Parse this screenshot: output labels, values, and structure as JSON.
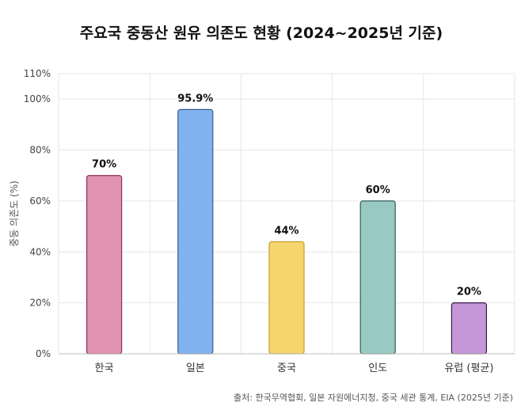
{
  "chart_data": {
    "type": "bar",
    "title": "주요국 중동산 원유 의존도 현황 (2024~2025년 기준)",
    "ylabel": "중동 의존도 (%)",
    "xlabel": "",
    "categories": [
      "한국",
      "일본",
      "중국",
      "인도",
      "유럽 (평균)"
    ],
    "values": [
      70,
      95.9,
      44,
      60,
      20
    ],
    "value_labels": [
      "70%",
      "95.9%",
      "44%",
      "60%",
      "20%"
    ],
    "ylim": [
      0,
      110
    ],
    "yticks": [
      0,
      20,
      40,
      60,
      80,
      100,
      110
    ],
    "ytick_labels": [
      "0%",
      "20%",
      "40%",
      "60%",
      "80%",
      "100%",
      "110%"
    ],
    "grid": true,
    "legend": "none",
    "colors": {
      "fill": [
        "#e093b0",
        "#82b3f0",
        "#f5d56c",
        "#99c9c3",
        "#c597d8"
      ],
      "stroke": [
        "#8e2f55",
        "#3a5a8a",
        "#c79c2f",
        "#2f5f58",
        "#3a1a4a"
      ]
    },
    "source": "출처: 한국무역협회, 일본 자원에너지청, 중국 세관 통계, EIA (2025년 기준)"
  }
}
